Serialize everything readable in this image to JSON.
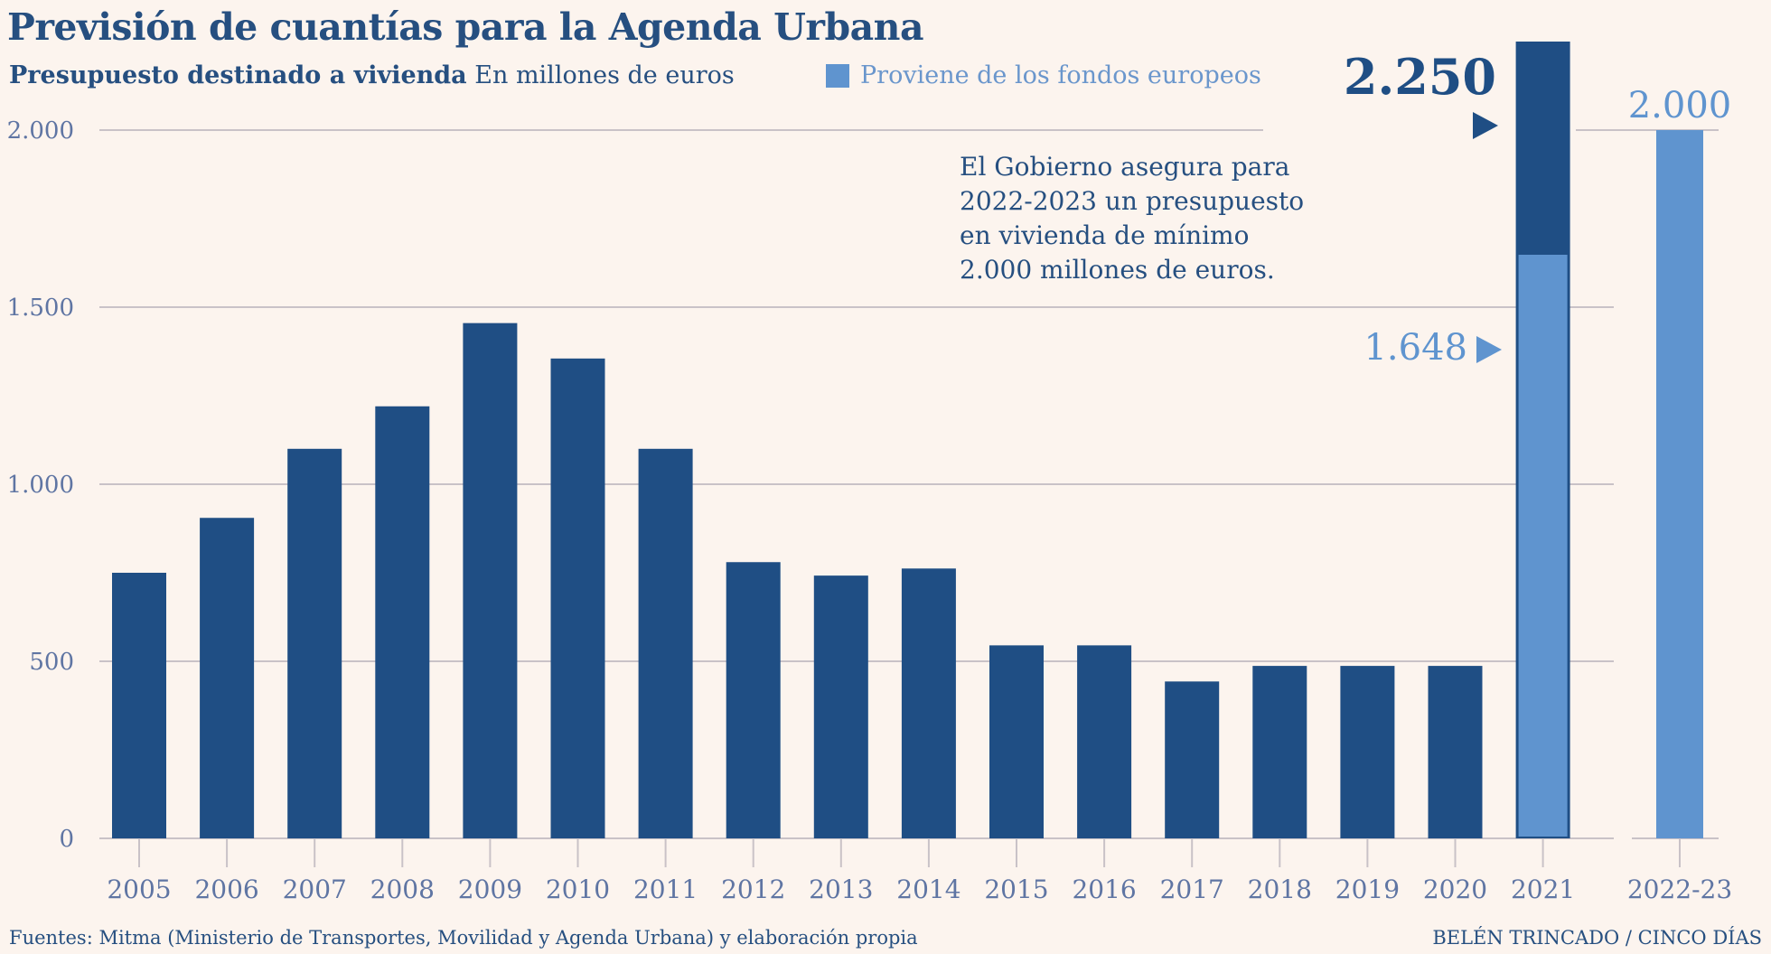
{
  "header": {
    "title": "Previsión de cuantías para la Agenda Urbana",
    "subtitle_bold": "Presupuesto destinado a vivienda",
    "subtitle_rest": "En millones de euros",
    "legend_label": "Proviene de los fondos europeos"
  },
  "annotation": {
    "lines": [
      "El Gobierno asegura para",
      "2022-2023 un presupuesto",
      "en vivienda de mínimo",
      "2.000 millones de euros."
    ]
  },
  "footer": {
    "source": "Fuentes: Mitma (Ministerio de Transportes, Movilidad y Agenda Urbana) y elaboración propia",
    "credit": "BELÉN TRINCADO / CINCO DÍAS"
  },
  "colors": {
    "dark_bar": "#1f4e84",
    "european_funds": "#5f94cf",
    "title": "#264f80",
    "grid": "#c9c2c7",
    "background": "#fcf4ee"
  },
  "chart_data": {
    "type": "bar",
    "title": "Previsión de cuantías para la Agenda Urbana",
    "subtitle": "Presupuesto destinado a vivienda En millones de euros",
    "ylabel": "",
    "xlabel": "",
    "ylim": [
      0,
      2250
    ],
    "yticks": [
      0,
      500,
      1000,
      1500,
      2000
    ],
    "ytick_labels": [
      "0",
      "500",
      "1.000",
      "1.500",
      "2.000"
    ],
    "grid": true,
    "categories": [
      "2005",
      "2006",
      "2007",
      "2008",
      "2009",
      "2010",
      "2011",
      "2012",
      "2013",
      "2014",
      "2015",
      "2016",
      "2017",
      "2018",
      "2019",
      "2020",
      "2021",
      "2022-23"
    ],
    "series": [
      {
        "name": "Presupuesto destinado a vivienda",
        "values": [
          750,
          905,
          1100,
          1220,
          1455,
          1355,
          1100,
          780,
          742,
          762,
          545,
          545,
          443,
          487,
          487,
          487,
          2250,
          null
        ]
      },
      {
        "name": "Proviene de los fondos europeos",
        "values": [
          null,
          null,
          null,
          null,
          null,
          null,
          null,
          null,
          null,
          null,
          null,
          null,
          null,
          null,
          null,
          null,
          1648,
          2000
        ]
      }
    ],
    "data_labels": [
      {
        "category": "2021",
        "value": 2250,
        "text": "2.250"
      },
      {
        "category": "2021",
        "value": 1648,
        "text": "1.648"
      },
      {
        "category": "2022-23",
        "value": 2000,
        "text": "2.000"
      }
    ]
  }
}
